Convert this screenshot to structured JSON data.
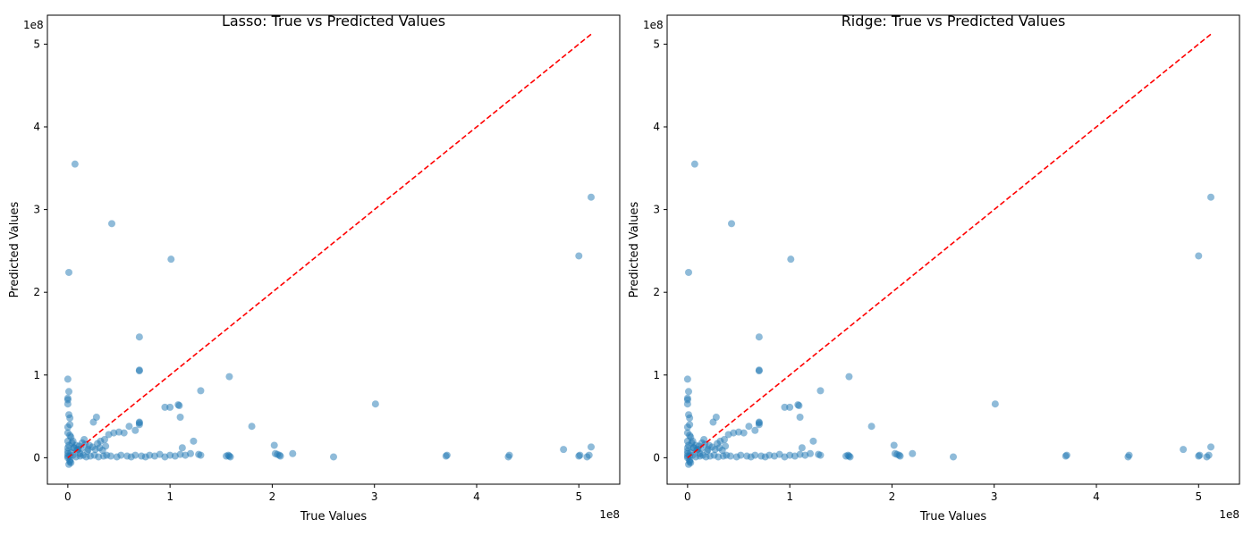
{
  "chart_data": [
    {
      "type": "scatter",
      "title": "Lasso: True vs Predicted Values",
      "xlabel": "True Values",
      "ylabel": "Predicted Values",
      "x_offset_label": "1e8",
      "y_offset_label": "1e8",
      "xlim": [
        -0.2,
        5.4
      ],
      "ylim": [
        -0.32,
        5.35
      ],
      "xticks": [
        0,
        1,
        2,
        3,
        4,
        5
      ],
      "yticks": [
        0,
        1,
        2,
        3,
        4,
        5
      ],
      "xtick_labels": [
        "0",
        "1",
        "2",
        "3",
        "4",
        "5"
      ],
      "ytick_labels": [
        "0",
        "1",
        "2",
        "3",
        "4",
        "5"
      ],
      "grid": false,
      "point_color": "#1f77b4",
      "reference_line": {
        "style": "dashed",
        "color": "#ff0000",
        "from": [
          0,
          0
        ],
        "to": [
          5.12,
          5.12
        ]
      },
      "series": [
        {
          "x": [
            0.07,
            0.01,
            0.43,
            1.01,
            0.7,
            0.0,
            0.01,
            0.0,
            0.0,
            0.0,
            0.01,
            0.02,
            0.02,
            0.0,
            0.0,
            0.0,
            0.0,
            0.0,
            0.02,
            0.0,
            0.0,
            0.01,
            0.03,
            0.05,
            0.08,
            0.1,
            0.12,
            0.14,
            0.16,
            0.2,
            0.25,
            0.28,
            0.32,
            0.36,
            0.4,
            0.45,
            0.5,
            0.55,
            0.6,
            0.66,
            0.7,
            0.7,
            0.7,
            0.7,
            0.7,
            0.95,
            1.0,
            1.08,
            1.09,
            1.1,
            1.12,
            1.23,
            1.3,
            1.58,
            1.8,
            2.02,
            2.2,
            3.01,
            4.85,
            5.0,
            5.12,
            5.01,
            0.02,
            0.05,
            0.08,
            0.12,
            0.15,
            0.18,
            0.22,
            0.26,
            0.3,
            0.35,
            0.38,
            0.42,
            0.48,
            0.52,
            0.58,
            0.62,
            0.66,
            0.72,
            0.76,
            0.8,
            0.85,
            0.9,
            0.95,
            1.0,
            1.05,
            1.1,
            1.15,
            1.2,
            1.28,
            1.3,
            1.55,
            1.57,
            1.58,
            1.59,
            2.03,
            2.05,
            2.07,
            2.08,
            2.6,
            3.7,
            3.71,
            4.31,
            4.32,
            5.0,
            5.08,
            5.1,
            5.12,
            0.03,
            0.06,
            0.09,
            0.11,
            0.13,
            0.17,
            0.19,
            0.21,
            0.24,
            0.27,
            0.29,
            0.31,
            0.34,
            0.37,
            0.02,
            0.04,
            0.06,
            0.01,
            0.03,
            0.0,
            0.02
          ],
          "y": [
            3.55,
            2.24,
            2.83,
            2.4,
            1.46,
            0.95,
            0.8,
            0.72,
            0.7,
            0.65,
            0.52,
            0.48,
            0.4,
            0.37,
            0.3,
            0.2,
            0.12,
            0.05,
            -0.05,
            0.0,
            0.08,
            0.15,
            0.25,
            0.2,
            0.15,
            0.1,
            0.05,
            0.18,
            0.22,
            0.1,
            0.43,
            0.49,
            0.2,
            0.22,
            0.28,
            0.3,
            0.31,
            0.3,
            0.38,
            0.33,
            1.06,
            1.05,
            0.43,
            0.42,
            0.4,
            0.61,
            0.61,
            0.64,
            0.63,
            0.49,
            0.12,
            0.2,
            0.81,
            0.98,
            0.38,
            0.15,
            0.05,
            0.65,
            0.1,
            2.44,
            3.15,
            0.03,
            0.02,
            0.03,
            0.01,
            0.02,
            0.03,
            0.01,
            0.02,
            0.03,
            0.01,
            0.02,
            0.03,
            0.02,
            0.01,
            0.03,
            0.02,
            0.01,
            0.03,
            0.02,
            0.01,
            0.03,
            0.02,
            0.04,
            0.01,
            0.03,
            0.02,
            0.04,
            0.03,
            0.05,
            0.04,
            0.03,
            0.02,
            0.03,
            0.02,
            0.01,
            0.05,
            0.04,
            0.03,
            0.02,
            0.01,
            0.02,
            0.03,
            0.01,
            0.03,
            0.02,
            0.01,
            0.03,
            0.13,
            0.06,
            0.12,
            0.09,
            0.14,
            0.11,
            0.16,
            0.08,
            0.15,
            0.13,
            0.1,
            0.17,
            0.12,
            0.09,
            0.14,
            0.27,
            0.18,
            0.12,
            -0.08,
            -0.06,
            0.02,
            -0.03
          ]
        }
      ]
    },
    {
      "type": "scatter",
      "title": "Ridge: True vs Predicted Values",
      "xlabel": "True Values",
      "ylabel": "Predicted Values",
      "x_offset_label": "1e8",
      "y_offset_label": "1e8",
      "xlim": [
        -0.2,
        5.4
      ],
      "ylim": [
        -0.32,
        5.35
      ],
      "xticks": [
        0,
        1,
        2,
        3,
        4,
        5
      ],
      "yticks": [
        0,
        1,
        2,
        3,
        4,
        5
      ],
      "xtick_labels": [
        "0",
        "1",
        "2",
        "3",
        "4",
        "5"
      ],
      "ytick_labels": [
        "0",
        "1",
        "2",
        "3",
        "4",
        "5"
      ],
      "grid": false,
      "point_color": "#1f77b4",
      "reference_line": {
        "style": "dashed",
        "color": "#ff0000",
        "from": [
          0,
          0
        ],
        "to": [
          5.12,
          5.12
        ]
      },
      "series": [
        {
          "x": [
            0.07,
            0.01,
            0.43,
            1.01,
            0.7,
            0.0,
            0.01,
            0.0,
            0.0,
            0.0,
            0.01,
            0.02,
            0.02,
            0.0,
            0.0,
            0.0,
            0.0,
            0.0,
            0.02,
            0.0,
            0.0,
            0.01,
            0.03,
            0.05,
            0.08,
            0.1,
            0.12,
            0.14,
            0.16,
            0.2,
            0.25,
            0.28,
            0.32,
            0.36,
            0.4,
            0.45,
            0.5,
            0.55,
            0.6,
            0.66,
            0.7,
            0.7,
            0.7,
            0.7,
            0.7,
            0.95,
            1.0,
            1.08,
            1.09,
            1.1,
            1.12,
            1.23,
            1.3,
            1.58,
            1.8,
            2.02,
            2.2,
            3.01,
            4.85,
            5.0,
            5.12,
            5.01,
            0.02,
            0.05,
            0.08,
            0.12,
            0.15,
            0.18,
            0.22,
            0.26,
            0.3,
            0.35,
            0.38,
            0.42,
            0.48,
            0.52,
            0.58,
            0.62,
            0.66,
            0.72,
            0.76,
            0.8,
            0.85,
            0.9,
            0.95,
            1.0,
            1.05,
            1.1,
            1.15,
            1.2,
            1.28,
            1.3,
            1.55,
            1.57,
            1.58,
            1.59,
            2.03,
            2.05,
            2.07,
            2.08,
            2.6,
            3.7,
            3.71,
            4.31,
            4.32,
            5.0,
            5.08,
            5.1,
            5.12,
            0.03,
            0.06,
            0.09,
            0.11,
            0.13,
            0.17,
            0.19,
            0.21,
            0.24,
            0.27,
            0.29,
            0.31,
            0.34,
            0.37,
            0.02,
            0.04,
            0.06,
            0.01,
            0.03,
            0.0,
            0.02
          ],
          "y": [
            3.55,
            2.24,
            2.83,
            2.4,
            1.46,
            0.95,
            0.8,
            0.72,
            0.7,
            0.65,
            0.52,
            0.48,
            0.4,
            0.37,
            0.3,
            0.2,
            0.12,
            0.05,
            -0.05,
            0.0,
            0.08,
            0.15,
            0.25,
            0.2,
            0.15,
            0.1,
            0.05,
            0.18,
            0.22,
            0.1,
            0.43,
            0.49,
            0.2,
            0.22,
            0.28,
            0.3,
            0.31,
            0.3,
            0.38,
            0.33,
            1.06,
            1.05,
            0.43,
            0.42,
            0.4,
            0.61,
            0.61,
            0.64,
            0.63,
            0.49,
            0.12,
            0.2,
            0.81,
            0.98,
            0.38,
            0.15,
            0.05,
            0.65,
            0.1,
            2.44,
            3.15,
            0.03,
            0.02,
            0.03,
            0.01,
            0.02,
            0.03,
            0.01,
            0.02,
            0.03,
            0.01,
            0.02,
            0.03,
            0.02,
            0.01,
            0.03,
            0.02,
            0.01,
            0.03,
            0.02,
            0.01,
            0.03,
            0.02,
            0.04,
            0.01,
            0.03,
            0.02,
            0.04,
            0.03,
            0.05,
            0.04,
            0.03,
            0.02,
            0.03,
            0.02,
            0.01,
            0.05,
            0.04,
            0.03,
            0.02,
            0.01,
            0.02,
            0.03,
            0.01,
            0.03,
            0.02,
            0.01,
            0.03,
            0.13,
            0.06,
            0.12,
            0.09,
            0.14,
            0.11,
            0.16,
            0.08,
            0.15,
            0.13,
            0.1,
            0.17,
            0.12,
            0.09,
            0.14,
            0.27,
            0.18,
            0.12,
            -0.08,
            -0.06,
            0.02,
            -0.03
          ]
        }
      ]
    }
  ]
}
